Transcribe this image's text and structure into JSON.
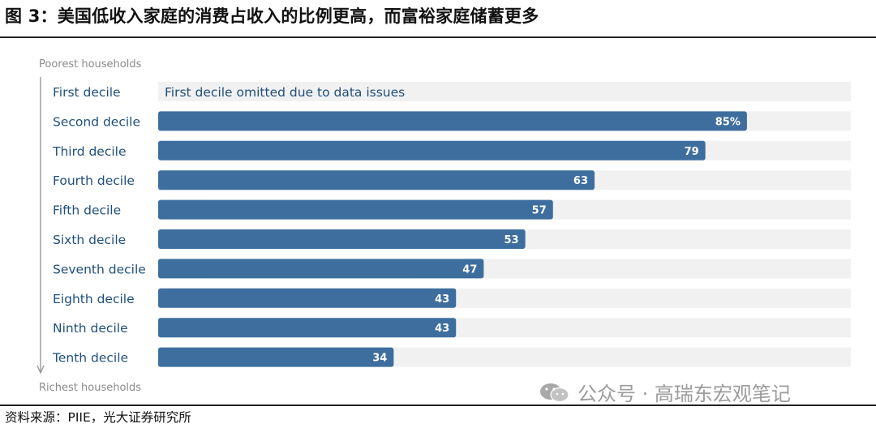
{
  "figure": {
    "title": "图 3：美国低收入家庭的消费占收入的比例更高，而富裕家庭储蓄更多",
    "source": "资料来源：PIIE，光大证券研究所",
    "watermark": "公众号 · 高瑞东宏观笔记",
    "watermark_icon": "wechat-icon"
  },
  "chart_data": {
    "type": "bar",
    "orientation": "horizontal",
    "axis_top_label": "Poorest households",
    "axis_bottom_label": "Richest households",
    "categories": [
      "First decile",
      "Second decile",
      "Third decile",
      "Fourth decile",
      "Fifth decile",
      "Sixth decile",
      "Seventh decile",
      "Eighth decile",
      "Ninth decile",
      "Tenth decile"
    ],
    "values": [
      null,
      85,
      79,
      63,
      57,
      53,
      47,
      43,
      43,
      34
    ],
    "data_labels": [
      "",
      "85%",
      "79",
      "63",
      "57",
      "53",
      "47",
      "43",
      "43",
      "34"
    ],
    "omitted_note": "First decile omitted due to data issues",
    "xlim": [
      0,
      100
    ],
    "grid": false,
    "legend": "none",
    "colors": {
      "bar": "#3d6e9e",
      "track": "#f1f1f1",
      "label_text": "#1f4f7c",
      "value_text": "#ffffff",
      "axis_line": "#9a9a9a"
    }
  }
}
